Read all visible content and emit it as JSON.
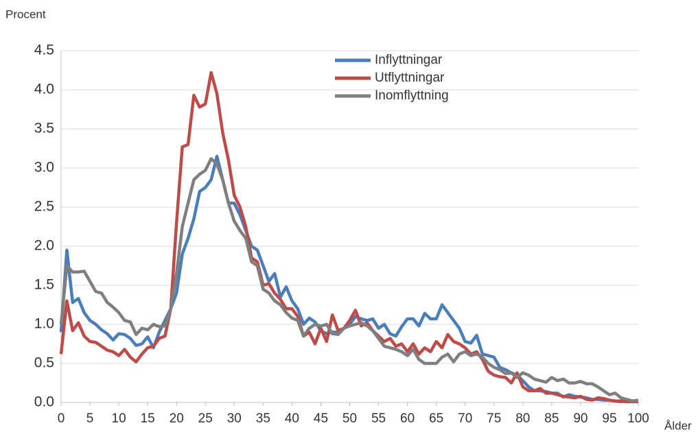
{
  "chart_data": {
    "type": "line",
    "y_axis_label": "Procent",
    "x_axis_label": "Ålder",
    "x": [
      0,
      1,
      2,
      3,
      4,
      5,
      6,
      7,
      8,
      9,
      10,
      11,
      12,
      13,
      14,
      15,
      16,
      17,
      18,
      19,
      20,
      21,
      22,
      23,
      24,
      25,
      26,
      27,
      28,
      29,
      30,
      31,
      32,
      33,
      34,
      35,
      36,
      37,
      38,
      39,
      40,
      41,
      42,
      43,
      44,
      45,
      46,
      47,
      48,
      49,
      50,
      51,
      52,
      53,
      54,
      55,
      56,
      57,
      58,
      59,
      60,
      61,
      62,
      63,
      64,
      65,
      66,
      67,
      68,
      69,
      70,
      71,
      72,
      73,
      74,
      75,
      76,
      77,
      78,
      79,
      80,
      81,
      82,
      83,
      84,
      85,
      86,
      87,
      88,
      89,
      90,
      91,
      92,
      93,
      94,
      95,
      96,
      97,
      98,
      99,
      100
    ],
    "series": [
      {
        "name": "Inflyttningar",
        "color": "#4a7ebb",
        "values": [
          0.9,
          1.95,
          1.28,
          1.33,
          1.15,
          1.05,
          1.0,
          0.93,
          0.88,
          0.8,
          0.88,
          0.87,
          0.82,
          0.73,
          0.75,
          0.84,
          0.7,
          0.9,
          1.05,
          1.2,
          1.4,
          1.9,
          2.1,
          2.35,
          2.7,
          2.75,
          2.85,
          3.15,
          2.85,
          2.55,
          2.55,
          2.4,
          2.2,
          2.0,
          1.95,
          1.75,
          1.55,
          1.65,
          1.35,
          1.48,
          1.3,
          1.2,
          1.0,
          1.08,
          1.03,
          0.92,
          0.88,
          0.9,
          0.9,
          0.95,
          1.0,
          1.1,
          1.07,
          1.05,
          1.07,
          0.95,
          1.0,
          0.88,
          0.85,
          0.97,
          1.07,
          1.07,
          0.98,
          1.14,
          1.07,
          1.07,
          1.25,
          1.15,
          1.05,
          0.95,
          0.78,
          0.76,
          0.86,
          0.62,
          0.6,
          0.58,
          0.45,
          0.42,
          0.38,
          0.35,
          0.28,
          0.2,
          0.15,
          0.15,
          0.14,
          0.12,
          0.12,
          0.07,
          0.1,
          0.08,
          0.07,
          0.06,
          0.04,
          0.04,
          0.03,
          0.03,
          0.02,
          0.01,
          0.02,
          0.01,
          0.02
        ]
      },
      {
        "name": "Utflyttningar",
        "color": "#be4b48",
        "values": [
          0.62,
          1.3,
          0.92,
          1.02,
          0.85,
          0.78,
          0.77,
          0.72,
          0.67,
          0.65,
          0.6,
          0.68,
          0.58,
          0.52,
          0.62,
          0.7,
          0.72,
          0.82,
          0.85,
          1.2,
          2.3,
          3.27,
          3.3,
          3.93,
          3.78,
          3.82,
          4.22,
          3.95,
          3.45,
          3.1,
          2.65,
          2.5,
          2.25,
          1.85,
          1.8,
          1.5,
          1.52,
          1.4,
          1.32,
          1.2,
          1.2,
          1.1,
          0.85,
          0.9,
          0.75,
          0.95,
          0.78,
          1.12,
          0.92,
          0.95,
          1.05,
          1.18,
          0.98,
          1.02,
          0.92,
          0.85,
          0.78,
          0.82,
          0.72,
          0.75,
          0.65,
          0.75,
          0.62,
          0.7,
          0.65,
          0.78,
          0.7,
          0.87,
          0.78,
          0.75,
          0.7,
          0.62,
          0.65,
          0.55,
          0.4,
          0.35,
          0.33,
          0.32,
          0.25,
          0.38,
          0.2,
          0.15,
          0.15,
          0.18,
          0.12,
          0.12,
          0.1,
          0.08,
          0.07,
          0.06,
          0.08,
          0.04,
          0.03,
          0.06,
          0.05,
          0.03,
          0.02,
          0.02,
          0.01,
          0.01,
          0.01
        ]
      },
      {
        "name": "Inomflyttning",
        "color": "#7f7f7f",
        "values": [
          1.0,
          1.75,
          1.67,
          1.67,
          1.68,
          1.55,
          1.42,
          1.4,
          1.28,
          1.22,
          1.15,
          1.05,
          1.03,
          0.87,
          0.95,
          0.93,
          1.0,
          0.97,
          0.98,
          1.2,
          1.65,
          2.25,
          2.55,
          2.85,
          2.92,
          2.97,
          3.12,
          3.05,
          2.85,
          2.55,
          2.32,
          2.2,
          2.1,
          1.8,
          1.75,
          1.45,
          1.4,
          1.3,
          1.25,
          1.15,
          1.08,
          1.05,
          0.85,
          0.95,
          1.0,
          0.98,
          1.0,
          0.88,
          0.87,
          0.95,
          0.98,
          1.0,
          1.02,
          0.98,
          0.92,
          0.82,
          0.72,
          0.7,
          0.68,
          0.65,
          0.6,
          0.68,
          0.55,
          0.5,
          0.5,
          0.5,
          0.58,
          0.62,
          0.52,
          0.62,
          0.65,
          0.6,
          0.62,
          0.58,
          0.5,
          0.45,
          0.42,
          0.37,
          0.38,
          0.32,
          0.38,
          0.35,
          0.3,
          0.28,
          0.26,
          0.32,
          0.28,
          0.3,
          0.25,
          0.25,
          0.27,
          0.24,
          0.24,
          0.2,
          0.15,
          0.1,
          0.12,
          0.06,
          0.04,
          0.02,
          0.03
        ]
      }
    ],
    "xlim": [
      0,
      100
    ],
    "xticks": [
      0,
      5,
      10,
      15,
      20,
      25,
      30,
      35,
      40,
      45,
      50,
      55,
      60,
      65,
      70,
      75,
      80,
      85,
      90,
      95,
      100
    ],
    "ylim": [
      0,
      4.5
    ],
    "yticks": [
      {
        "value": 0,
        "label": "0.0"
      },
      0.5,
      {
        "value": 1,
        "label": "1.0"
      },
      1.5,
      {
        "value": 2,
        "label": "2.0"
      },
      2.5,
      {
        "value": 3,
        "label": "3.0"
      },
      3.5,
      {
        "value": 4,
        "label": "4.0"
      },
      4.5
    ],
    "grid": true,
    "legend": "top"
  }
}
